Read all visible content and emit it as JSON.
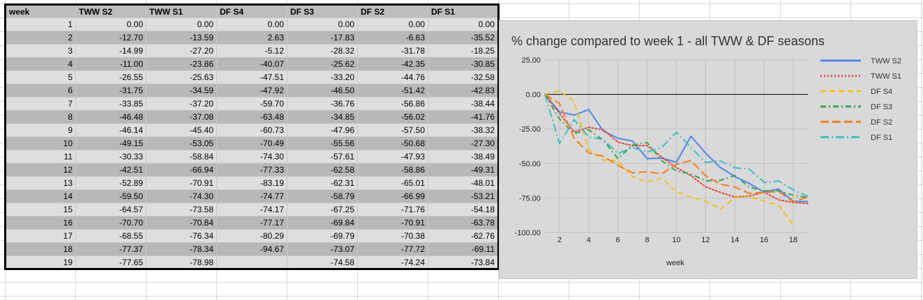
{
  "table": {
    "headers": [
      "week",
      "TWW S2",
      "TWW S1",
      "DF S4",
      "DF S3",
      "DF S2",
      "DF S1"
    ],
    "rows": [
      [
        "1",
        "0.00",
        "0.00",
        "0.00",
        "0.00",
        "0.00",
        "0.00"
      ],
      [
        "2",
        "-12.70",
        "-13.59",
        "2.63",
        "-17.83",
        "-6.63",
        "-35.52"
      ],
      [
        "3",
        "-14.99",
        "-27.20",
        "-5.12",
        "-28.32",
        "-31.78",
        "-18.25"
      ],
      [
        "4",
        "-11.00",
        "-23.86",
        "-40.07",
        "-25.62",
        "-42.35",
        "-30.85"
      ],
      [
        "5",
        "-26.55",
        "-25.63",
        "-47.51",
        "-33.20",
        "-44.76",
        "-32.58"
      ],
      [
        "6",
        "-31.75",
        "-34.59",
        "-47.92",
        "-46.50",
        "-51.42",
        "-42.83"
      ],
      [
        "7",
        "-33.85",
        "-37.20",
        "-59.70",
        "-36.76",
        "-56.86",
        "-38.44"
      ],
      [
        "8",
        "-46.48",
        "-37.08",
        "-63.48",
        "-34.85",
        "-56.02",
        "-41.76"
      ],
      [
        "9",
        "-46.14",
        "-45.40",
        "-60.73",
        "-47.96",
        "-57.50",
        "-38.32"
      ],
      [
        "10",
        "-49.15",
        "-53.05",
        "-70.49",
        "-55.56",
        "-50.68",
        "-27.30"
      ],
      [
        "11",
        "-30.33",
        "-58.84",
        "-74.30",
        "-57.61",
        "-47.93",
        "-38.49"
      ],
      [
        "12",
        "-42.51",
        "-66.94",
        "-77.33",
        "-62.58",
        "-58.86",
        "-49.31"
      ],
      [
        "13",
        "-52.89",
        "-70.91",
        "-83.19",
        "-62.31",
        "-65.01",
        "-48.01"
      ],
      [
        "14",
        "-59.50",
        "-74.30",
        "-74.77",
        "-58.79",
        "-66.99",
        "-53.21"
      ],
      [
        "15",
        "-64.57",
        "-73.58",
        "-74.17",
        "-67.25",
        "-71.76",
        "-54.18"
      ],
      [
        "16",
        "-70.70",
        "-70.84",
        "-77.17",
        "-69.84",
        "-70.91",
        "-63.78"
      ],
      [
        "17",
        "-68.55",
        "-76.34",
        "-80.29",
        "-69.79",
        "-70.38",
        "-62.76"
      ],
      [
        "18",
        "-77.37",
        "-78.34",
        "-94.67",
        "-73.07",
        "-77.72",
        "-69.11"
      ],
      [
        "19",
        "-77.65",
        "-78.98",
        "",
        "-74.58",
        "-74.24",
        "-73.84"
      ]
    ]
  },
  "chart_data": {
    "type": "line",
    "title": "% change compared to week 1 - all TWW & DF seasons",
    "xlabel": "week",
    "ylabel": "",
    "x": [
      1,
      2,
      3,
      4,
      5,
      6,
      7,
      8,
      9,
      10,
      11,
      12,
      13,
      14,
      15,
      16,
      17,
      18,
      19
    ],
    "x_ticks": [
      "2",
      "4",
      "6",
      "8",
      "10",
      "12",
      "14",
      "16",
      "18"
    ],
    "y_ticks": [
      "25.00",
      "0.00",
      "-25.00",
      "-50.00",
      "-75.00",
      "-100.00"
    ],
    "ylim": [
      -100,
      25
    ],
    "grid": true,
    "legend_position": "right",
    "series": [
      {
        "name": "TWW S2",
        "color": "#4f86ec",
        "dash": "solid",
        "values": [
          0.0,
          -12.7,
          -14.99,
          -11.0,
          -26.55,
          -31.75,
          -33.85,
          -46.48,
          -46.14,
          -49.15,
          -30.33,
          -42.51,
          -52.89,
          -59.5,
          -64.57,
          -70.7,
          -68.55,
          -77.37,
          -77.65
        ]
      },
      {
        "name": "TWW S1",
        "color": "#e0463a",
        "dash": "dotted",
        "values": [
          0.0,
          -13.59,
          -27.2,
          -23.86,
          -25.63,
          -34.59,
          -37.2,
          -37.08,
          -45.4,
          -53.05,
          -58.84,
          -66.94,
          -70.91,
          -74.3,
          -73.58,
          -70.84,
          -76.34,
          -78.34,
          -78.98
        ]
      },
      {
        "name": "DF S4",
        "color": "#f4c01e",
        "dash": "dashed",
        "values": [
          0.0,
          2.63,
          -5.12,
          -40.07,
          -47.51,
          -47.92,
          -59.7,
          -63.48,
          -60.73,
          -70.49,
          -74.3,
          -77.33,
          -83.19,
          -74.77,
          -74.17,
          -77.17,
          -80.29,
          -94.67,
          null
        ]
      },
      {
        "name": "DF S3",
        "color": "#3ba455",
        "dash": "dashdot",
        "values": [
          0.0,
          -17.83,
          -28.32,
          -25.62,
          -33.2,
          -46.5,
          -36.76,
          -34.85,
          -47.96,
          -55.56,
          -57.61,
          -62.58,
          -62.31,
          -58.79,
          -67.25,
          -69.84,
          -69.79,
          -73.07,
          -74.58
        ]
      },
      {
        "name": "DF S2",
        "color": "#f57d20",
        "dash": "longdash",
        "values": [
          0.0,
          -6.63,
          -31.78,
          -42.35,
          -44.76,
          -51.42,
          -56.86,
          -56.02,
          -57.5,
          -50.68,
          -47.93,
          -58.86,
          -65.01,
          -66.99,
          -71.76,
          -70.91,
          -70.38,
          -77.72,
          -74.24
        ]
      },
      {
        "name": "DF S1",
        "color": "#3fbcc2",
        "dash": "longdashdot",
        "values": [
          0.0,
          -35.52,
          -18.25,
          -30.85,
          -32.58,
          -42.83,
          -38.44,
          -41.76,
          -38.32,
          -27.3,
          -38.49,
          -49.31,
          -48.01,
          -53.21,
          -54.18,
          -63.78,
          -62.76,
          -69.11,
          -73.84
        ]
      }
    ]
  }
}
